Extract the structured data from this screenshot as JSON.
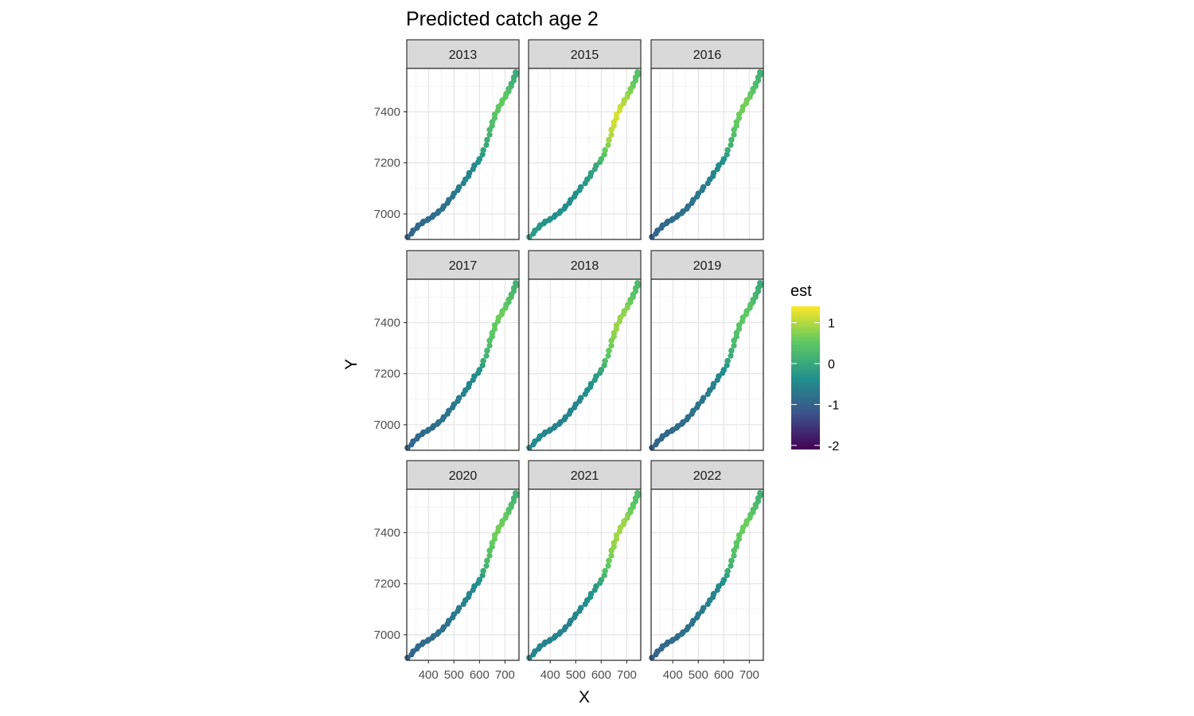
{
  "chart_data": {
    "type": "scatter",
    "title": "Predicted catch age 2",
    "xlabel": "X",
    "ylabel": "Y",
    "facets": [
      "2013",
      "2015",
      "2016",
      "2017",
      "2018",
      "2019",
      "2020",
      "2021",
      "2022"
    ],
    "xlim": [
      315,
      755
    ],
    "ylim": [
      6900,
      7570
    ],
    "x_ticks": [
      400,
      500,
      600,
      700
    ],
    "x_tick_labels": [
      "400",
      "500",
      "600",
      "700"
    ],
    "y_ticks": [
      7000,
      7200,
      7400
    ],
    "y_tick_labels": [
      "7000",
      "7200",
      "7400"
    ],
    "grid": true,
    "legend": {
      "title": "est",
      "position": "right",
      "limits": [
        -2.1,
        1.4
      ],
      "breaks": [
        1,
        0,
        -1,
        -2
      ],
      "break_labels": [
        "1",
        "0",
        "-1",
        "-2"
      ],
      "colors": [
        "#440154",
        "#3b528b",
        "#21918c",
        "#5ec962",
        "#fde725"
      ]
    },
    "coast_track": {
      "x": [
        318,
        340,
        360,
        380,
        400,
        420,
        440,
        460,
        480,
        500,
        520,
        545,
        560,
        580,
        600,
        615,
        630,
        640,
        650,
        660,
        675,
        690,
        705,
        715,
        725,
        735,
        742
      ],
      "y": [
        6910,
        6935,
        6955,
        6970,
        6980,
        6995,
        7010,
        7030,
        7055,
        7080,
        7105,
        7135,
        7160,
        7190,
        7215,
        7250,
        7290,
        7330,
        7360,
        7390,
        7420,
        7445,
        7470,
        7490,
        7510,
        7535,
        7555
      ]
    },
    "panel_est": [
      [
        -1.0,
        -0.95,
        -0.9,
        -0.9,
        -0.85,
        -0.85,
        -0.8,
        -0.8,
        -0.75,
        -0.7,
        -0.6,
        -0.5,
        -0.5,
        -0.45,
        -0.3,
        -0.05,
        0.1,
        0.25,
        0.35,
        0.45,
        0.5,
        0.55,
        0.45,
        0.3,
        0.2,
        0.1,
        0.05
      ],
      [
        -0.2,
        -0.2,
        -0.25,
        -0.3,
        -0.3,
        -0.35,
        -0.35,
        -0.4,
        -0.4,
        -0.35,
        -0.3,
        -0.2,
        -0.1,
        0.0,
        0.3,
        0.6,
        0.9,
        1.05,
        1.15,
        1.2,
        1.1,
        0.95,
        0.85,
        0.7,
        0.55,
        0.45,
        0.4
      ],
      [
        -1.0,
        -0.95,
        -0.9,
        -0.9,
        -0.85,
        -0.85,
        -0.8,
        -0.8,
        -0.75,
        -0.7,
        -0.65,
        -0.55,
        -0.5,
        -0.45,
        -0.3,
        0.05,
        0.25,
        0.45,
        0.55,
        0.6,
        0.65,
        0.65,
        0.55,
        0.4,
        0.3,
        0.2,
        0.15
      ],
      [
        -1.0,
        -0.95,
        -0.9,
        -0.9,
        -0.85,
        -0.85,
        -0.8,
        -0.8,
        -0.75,
        -0.7,
        -0.65,
        -0.55,
        -0.5,
        -0.45,
        -0.3,
        0.05,
        0.25,
        0.4,
        0.5,
        0.55,
        0.6,
        0.6,
        0.5,
        0.4,
        0.3,
        0.2,
        0.15
      ],
      [
        -0.45,
        -0.45,
        -0.45,
        -0.5,
        -0.5,
        -0.5,
        -0.55,
        -0.55,
        -0.5,
        -0.5,
        -0.45,
        -0.35,
        -0.3,
        -0.2,
        0.0,
        0.35,
        0.55,
        0.7,
        0.8,
        0.85,
        0.85,
        0.8,
        0.7,
        0.55,
        0.45,
        0.35,
        0.3
      ],
      [
        -1.0,
        -0.95,
        -0.95,
        -0.9,
        -0.9,
        -0.85,
        -0.85,
        -0.85,
        -0.8,
        -0.75,
        -0.7,
        -0.6,
        -0.55,
        -0.5,
        -0.35,
        -0.05,
        0.15,
        0.3,
        0.4,
        0.45,
        0.5,
        0.5,
        0.4,
        0.3,
        0.2,
        0.1,
        0.05
      ],
      [
        -1.0,
        -0.95,
        -0.9,
        -0.9,
        -0.85,
        -0.85,
        -0.8,
        -0.8,
        -0.75,
        -0.7,
        -0.65,
        -0.55,
        -0.5,
        -0.45,
        -0.3,
        0.05,
        0.3,
        0.45,
        0.55,
        0.6,
        0.65,
        0.6,
        0.55,
        0.4,
        0.3,
        0.2,
        0.15
      ],
      [
        -0.5,
        -0.5,
        -0.5,
        -0.55,
        -0.55,
        -0.55,
        -0.55,
        -0.6,
        -0.55,
        -0.5,
        -0.45,
        -0.35,
        -0.3,
        -0.2,
        0.05,
        0.4,
        0.6,
        0.75,
        0.85,
        0.9,
        0.9,
        0.85,
        0.75,
        0.6,
        0.5,
        0.4,
        0.35
      ],
      [
        -1.0,
        -0.95,
        -0.9,
        -0.9,
        -0.85,
        -0.85,
        -0.8,
        -0.8,
        -0.75,
        -0.7,
        -0.65,
        -0.55,
        -0.5,
        -0.45,
        -0.3,
        0.05,
        0.25,
        0.4,
        0.5,
        0.55,
        0.6,
        0.6,
        0.5,
        0.4,
        0.3,
        0.2,
        0.15
      ]
    ]
  }
}
